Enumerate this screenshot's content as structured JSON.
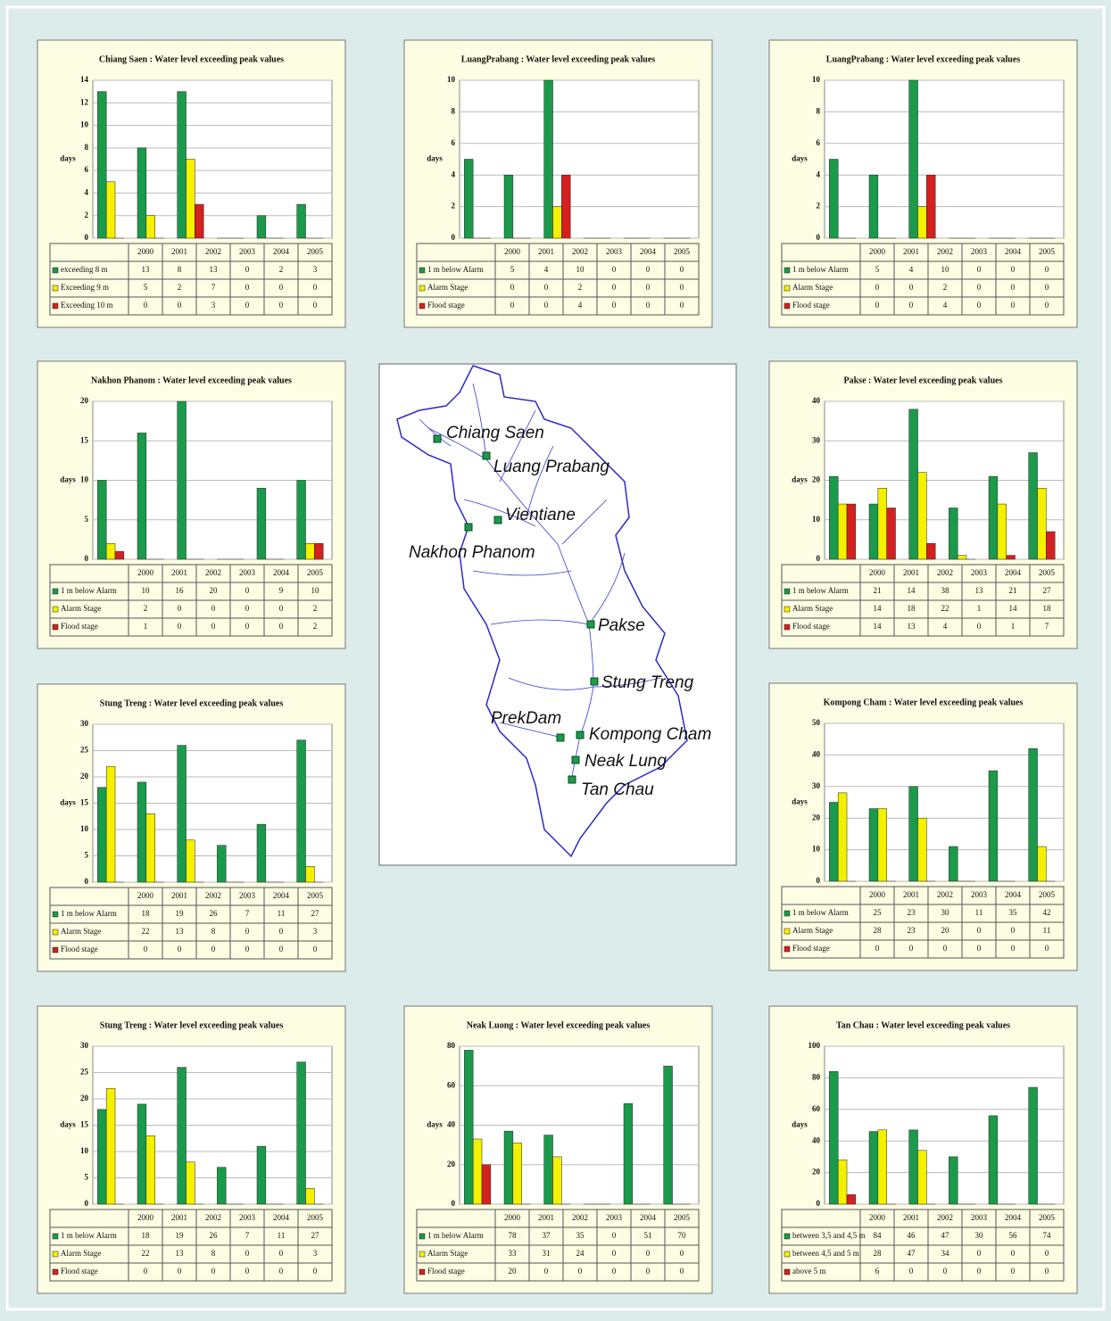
{
  "chart_data": [
    {
      "type": "bar",
      "title": "Chiang Saen : Water level exceeding peak values",
      "y_label": "days",
      "categories": [
        "2000",
        "2001",
        "2002",
        "2003",
        "2004",
        "2005"
      ],
      "ylim": [
        0,
        14
      ],
      "yticks": [
        0,
        2,
        4,
        6,
        8,
        10,
        12,
        14
      ],
      "grid": true,
      "series": [
        {
          "name": "exceeding 8 m",
          "color": "#1a9a4a",
          "values": [
            13,
            8,
            13,
            0,
            2,
            3
          ]
        },
        {
          "name": "Exceeding 9 m",
          "color": "#f4f000",
          "values": [
            5,
            2,
            7,
            0,
            0,
            0
          ]
        },
        {
          "name": "Exceeding 10 m",
          "color": "#d42020",
          "values": [
            0,
            0,
            3,
            0,
            0,
            0
          ]
        }
      ]
    },
    {
      "type": "bar",
      "title": "LuangPrabang : Water level exceeding peak values",
      "y_label": "days",
      "categories": [
        "2000",
        "2001",
        "2002",
        "2003",
        "2004",
        "2005"
      ],
      "ylim": [
        0,
        10
      ],
      "yticks": [
        0,
        2,
        4,
        6,
        8,
        10
      ],
      "grid": true,
      "series": [
        {
          "name": "1 m below Alarm",
          "color": "#1a9a4a",
          "values": [
            5,
            4,
            10,
            0,
            0,
            0
          ]
        },
        {
          "name": "Alarm Stage",
          "color": "#f4f000",
          "values": [
            0,
            0,
            2,
            0,
            0,
            0
          ]
        },
        {
          "name": "Flood stage",
          "color": "#d42020",
          "values": [
            0,
            0,
            4,
            0,
            0,
            0
          ]
        }
      ]
    },
    {
      "type": "bar",
      "title": "LuangPrabang : Water level exceeding peak values",
      "y_label": "days",
      "categories": [
        "2000",
        "2001",
        "2002",
        "2003",
        "2004",
        "2005"
      ],
      "ylim": [
        0,
        10
      ],
      "yticks": [
        0,
        2,
        4,
        6,
        8,
        10
      ],
      "grid": true,
      "series": [
        {
          "name": "1 m below Alarm",
          "color": "#1a9a4a",
          "values": [
            5,
            4,
            10,
            0,
            0,
            0
          ]
        },
        {
          "name": "Alarm Stage",
          "color": "#f4f000",
          "values": [
            0,
            0,
            2,
            0,
            0,
            0
          ]
        },
        {
          "name": "Flood stage",
          "color": "#d42020",
          "values": [
            0,
            0,
            4,
            0,
            0,
            0
          ]
        }
      ]
    },
    {
      "type": "bar",
      "title": "Nakhon Phanom : Water level exceeding peak values",
      "y_label": "days",
      "categories": [
        "2000",
        "2001",
        "2002",
        "2003",
        "2004",
        "2005"
      ],
      "ylim": [
        0,
        20
      ],
      "yticks": [
        0,
        5,
        10,
        15,
        20
      ],
      "grid": true,
      "series": [
        {
          "name": "1 m below Alarm",
          "color": "#1a9a4a",
          "values": [
            10,
            16,
            20,
            0,
            9,
            10
          ]
        },
        {
          "name": "Alarm Stage",
          "color": "#f4f000",
          "values": [
            2,
            0,
            0,
            0,
            0,
            2
          ]
        },
        {
          "name": "Flood stage",
          "color": "#d42020",
          "values": [
            1,
            0,
            0,
            0,
            0,
            2
          ]
        }
      ]
    },
    {
      "type": "bar",
      "title": "Pakse : Water level exceeding peak values",
      "y_label": "days",
      "categories": [
        "2000",
        "2001",
        "2002",
        "2003",
        "2004",
        "2005"
      ],
      "ylim": [
        0,
        40
      ],
      "yticks": [
        0,
        10,
        20,
        30,
        40
      ],
      "grid": true,
      "series": [
        {
          "name": "1 m below Alarm",
          "color": "#1a9a4a",
          "values": [
            21,
            14,
            38,
            13,
            21,
            27
          ]
        },
        {
          "name": "Alarm Stage",
          "color": "#f4f000",
          "values": [
            14,
            18,
            22,
            1,
            14,
            18
          ]
        },
        {
          "name": "Flood stage",
          "color": "#d42020",
          "values": [
            14,
            13,
            4,
            0,
            1,
            7
          ]
        }
      ]
    },
    {
      "type": "bar",
      "title": "Stung Treng : Water level exceeding peak values",
      "y_label": "days",
      "categories": [
        "2000",
        "2001",
        "2002",
        "2003",
        "2004",
        "2005"
      ],
      "ylim": [
        0,
        30
      ],
      "yticks": [
        0,
        5,
        10,
        15,
        20,
        25,
        30
      ],
      "grid": true,
      "series": [
        {
          "name": "1 m below Alarm",
          "color": "#1a9a4a",
          "values": [
            18,
            19,
            26,
            7,
            11,
            27
          ]
        },
        {
          "name": "Alarm Stage",
          "color": "#f4f000",
          "values": [
            22,
            13,
            8,
            0,
            0,
            3
          ]
        },
        {
          "name": "Flood stage",
          "color": "#d42020",
          "values": [
            0,
            0,
            0,
            0,
            0,
            0
          ]
        }
      ]
    },
    {
      "type": "bar",
      "title": "Kompong Cham : Water level exceeding peak values",
      "y_label": "days",
      "categories": [
        "2000",
        "2001",
        "2002",
        "2003",
        "2004",
        "2005"
      ],
      "ylim": [
        0,
        50
      ],
      "yticks": [
        0,
        10,
        20,
        30,
        40,
        50
      ],
      "grid": true,
      "series": [
        {
          "name": "1 m below Alarm",
          "color": "#1a9a4a",
          "values": [
            25,
            23,
            30,
            11,
            35,
            42
          ]
        },
        {
          "name": "Alarm Stage",
          "color": "#f4f000",
          "values": [
            28,
            23,
            20,
            0,
            0,
            11
          ]
        },
        {
          "name": "Flood stage",
          "color": "#d42020",
          "values": [
            0,
            0,
            0,
            0,
            0,
            0
          ]
        }
      ]
    },
    {
      "type": "bar",
      "title": "Stung Treng : Water level exceeding peak values",
      "y_label": "days",
      "categories": [
        "2000",
        "2001",
        "2002",
        "2003",
        "2004",
        "2005"
      ],
      "ylim": [
        0,
        30
      ],
      "yticks": [
        0,
        5,
        10,
        15,
        20,
        25,
        30
      ],
      "grid": true,
      "series": [
        {
          "name": "1 m below Alarm",
          "color": "#1a9a4a",
          "values": [
            18,
            19,
            26,
            7,
            11,
            27
          ]
        },
        {
          "name": "Alarm Stage",
          "color": "#f4f000",
          "values": [
            22,
            13,
            8,
            0,
            0,
            3
          ]
        },
        {
          "name": "Flood stage",
          "color": "#d42020",
          "values": [
            0,
            0,
            0,
            0,
            0,
            0
          ]
        }
      ]
    },
    {
      "type": "bar",
      "title": "Neak Luong : Water level exceeding peak values",
      "y_label": "days",
      "categories": [
        "2000",
        "2001",
        "2002",
        "2003",
        "2004",
        "2005"
      ],
      "ylim": [
        0,
        80
      ],
      "yticks": [
        0,
        20,
        40,
        60,
        80
      ],
      "grid": true,
      "series": [
        {
          "name": "1 m below Alarm",
          "color": "#1a9a4a",
          "values": [
            78,
            37,
            35,
            0,
            51,
            70
          ]
        },
        {
          "name": "Alarm Stage",
          "color": "#f4f000",
          "values": [
            33,
            31,
            24,
            0,
            0,
            0
          ]
        },
        {
          "name": "Flood stage",
          "color": "#d42020",
          "values": [
            20,
            0,
            0,
            0,
            0,
            0
          ]
        }
      ]
    },
    {
      "type": "bar",
      "title": "Tan Chau : Water level exceeding peak values",
      "y_label": "days",
      "categories": [
        "2000",
        "2001",
        "2002",
        "2003",
        "2004",
        "2005"
      ],
      "ylim": [
        0,
        100
      ],
      "yticks": [
        0,
        20,
        40,
        60,
        80,
        100
      ],
      "grid": true,
      "series": [
        {
          "name": "between 3,5 and 4,5 m",
          "color": "#1a9a4a",
          "values": [
            84,
            46,
            47,
            30,
            56,
            74
          ]
        },
        {
          "name": "between 4,5 and 5 m",
          "color": "#f4f000",
          "values": [
            28,
            47,
            34,
            0,
            0,
            0
          ]
        },
        {
          "name": "above 5 m",
          "color": "#d42020",
          "values": [
            6,
            0,
            0,
            0,
            0,
            0
          ]
        }
      ]
    }
  ],
  "map": {
    "stations": [
      "Chiang Saen",
      "Luang Prabang",
      "Vientiane",
      "Nakhon Phanom",
      "Pakse",
      "Stung Treng",
      "PrekDam",
      "Kompong Cham",
      "Neak Lung",
      "Tan Chau"
    ]
  }
}
